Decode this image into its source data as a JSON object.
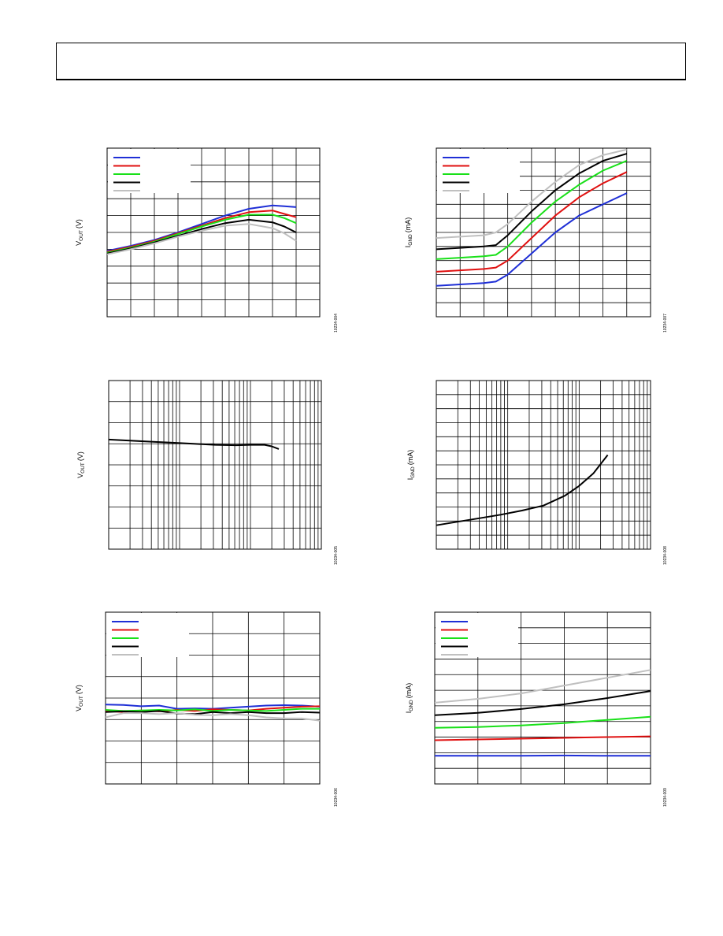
{
  "colors": {
    "blue": "#1f2fd6",
    "red": "#e01010",
    "green": "#19e019",
    "black": "#000000",
    "gray": "#c0c0c0"
  },
  "chart_data": [
    {
      "type": "line",
      "ylabel_main": "V",
      "ylabel_sub": "OUT",
      "ylabel_unit": "(V)",
      "figure_id": "10234-004",
      "legend": true,
      "grid": {
        "v": 9,
        "h": 10
      },
      "xlim": [
        0,
        9
      ],
      "ylim": [
        0,
        10
      ],
      "series": [
        {
          "color": "blue",
          "x": [
            0,
            1,
            2,
            3,
            4,
            5,
            6,
            7,
            7.5,
            8
          ],
          "y": [
            3.9,
            4.2,
            4.55,
            5.0,
            5.5,
            6.0,
            6.4,
            6.6,
            6.55,
            6.5
          ]
        },
        {
          "color": "red",
          "x": [
            0,
            1,
            2,
            3,
            4,
            5,
            6,
            7,
            7.5,
            8
          ],
          "y": [
            3.85,
            4.15,
            4.5,
            4.95,
            5.4,
            5.85,
            6.2,
            6.3,
            6.1,
            5.9
          ]
        },
        {
          "color": "green",
          "x": [
            0,
            1,
            2,
            3,
            4,
            5,
            6,
            7,
            7.5,
            8
          ],
          "y": [
            3.8,
            4.1,
            4.45,
            4.9,
            5.35,
            5.75,
            6.05,
            6.05,
            5.85,
            5.55
          ]
        },
        {
          "color": "black",
          "x": [
            0,
            1,
            2,
            3,
            4,
            5,
            6,
            7,
            7.5,
            8
          ],
          "y": [
            3.75,
            4.05,
            4.4,
            4.8,
            5.2,
            5.55,
            5.75,
            5.6,
            5.35,
            5.0
          ]
        },
        {
          "color": "gray",
          "x": [
            0,
            1,
            2,
            3,
            4,
            5,
            6,
            7,
            7.5,
            8
          ],
          "y": [
            3.7,
            4.0,
            4.35,
            4.75,
            5.1,
            5.4,
            5.5,
            5.25,
            4.95,
            4.5
          ]
        }
      ]
    },
    {
      "type": "line",
      "ylabel_main": "I",
      "ylabel_sub": "GND",
      "ylabel_unit": "(mA)",
      "figure_id": "10234-007",
      "legend": true,
      "grid": {
        "v": 9,
        "h": 12
      },
      "xlim": [
        0,
        9
      ],
      "ylim": [
        0,
        12
      ],
      "series": [
        {
          "color": "blue",
          "x": [
            0,
            1,
            2,
            2.5,
            3,
            4,
            5,
            6,
            7,
            8
          ],
          "y": [
            2.2,
            2.3,
            2.4,
            2.5,
            3.0,
            4.5,
            6.0,
            7.2,
            8.0,
            8.8
          ]
        },
        {
          "color": "red",
          "x": [
            0,
            1,
            2,
            2.5,
            3,
            4,
            5,
            6,
            7,
            8
          ],
          "y": [
            3.2,
            3.3,
            3.4,
            3.5,
            4.0,
            5.6,
            7.2,
            8.5,
            9.5,
            10.3
          ]
        },
        {
          "color": "green",
          "x": [
            0,
            1,
            2,
            2.5,
            3,
            4,
            5,
            6,
            7,
            8
          ],
          "y": [
            4.1,
            4.2,
            4.3,
            4.4,
            5.0,
            6.7,
            8.2,
            9.4,
            10.4,
            11.1
          ]
        },
        {
          "color": "black",
          "x": [
            0,
            1,
            2,
            2.5,
            3,
            4,
            5,
            6,
            7,
            8
          ],
          "y": [
            4.8,
            4.9,
            5.0,
            5.1,
            5.8,
            7.5,
            9.0,
            10.2,
            11.1,
            11.6
          ]
        },
        {
          "color": "gray",
          "x": [
            0,
            1,
            2,
            2.5,
            3,
            4,
            5,
            6,
            7,
            8
          ],
          "y": [
            5.6,
            5.7,
            5.8,
            6.0,
            6.6,
            8.2,
            9.6,
            10.8,
            11.5,
            11.9
          ]
        }
      ]
    },
    {
      "type": "line",
      "xscale": "log",
      "ylabel_main": "V",
      "ylabel_sub": "OUT",
      "ylabel_unit": "(V)",
      "figure_id": "10234-005",
      "legend": false,
      "grid": {
        "decades": 3,
        "h": 8
      },
      "xlim": [
        0,
        3
      ],
      "ylim": [
        0,
        8
      ],
      "series": [
        {
          "color": "black",
          "x": [
            0,
            0.3,
            0.6,
            0.9,
            1.2,
            1.5,
            1.8,
            2.0,
            2.2,
            2.3,
            2.4
          ],
          "y": [
            5.2,
            5.15,
            5.1,
            5.05,
            5.0,
            4.95,
            4.93,
            4.95,
            4.95,
            4.88,
            4.75
          ]
        }
      ]
    },
    {
      "type": "line",
      "xscale": "log",
      "ylabel_main": "I",
      "ylabel_sub": "GND",
      "ylabel_unit": "(mA)",
      "figure_id": "10234-008",
      "legend": false,
      "grid": {
        "decades": 3,
        "h": 12
      },
      "xlim": [
        0,
        3
      ],
      "ylim": [
        0,
        12
      ],
      "series": [
        {
          "color": "black",
          "x": [
            0,
            0.3,
            0.6,
            0.9,
            1.2,
            1.5,
            1.8,
            2.0,
            2.2,
            2.4
          ],
          "y": [
            1.7,
            1.95,
            2.2,
            2.45,
            2.75,
            3.1,
            3.8,
            4.5,
            5.4,
            6.7
          ]
        }
      ]
    },
    {
      "type": "line",
      "ylabel_main": "V",
      "ylabel_sub": "OUT",
      "ylabel_unit": "(V)",
      "figure_id": "10234-006",
      "legend": true,
      "grid": {
        "v": 6,
        "h": 8
      },
      "xlim": [
        0,
        6
      ],
      "ylim": [
        0,
        8
      ],
      "series": [
        {
          "color": "blue",
          "x": [
            0,
            0.5,
            1,
            1.5,
            2,
            2.5,
            3,
            3.5,
            4,
            4.5,
            5,
            5.5,
            6
          ],
          "y": [
            3.7,
            3.68,
            3.62,
            3.65,
            3.5,
            3.52,
            3.5,
            3.55,
            3.6,
            3.65,
            3.67,
            3.65,
            3.6
          ]
        },
        {
          "color": "red",
          "x": [
            0,
            0.5,
            1,
            1.5,
            2,
            2.5,
            3,
            3.5,
            4,
            4.5,
            5,
            5.5,
            6
          ],
          "y": [
            3.4,
            3.35,
            3.42,
            3.38,
            3.45,
            3.4,
            3.48,
            3.45,
            3.42,
            3.5,
            3.55,
            3.6,
            3.62
          ]
        },
        {
          "color": "green",
          "x": [
            0,
            0.5,
            1,
            1.5,
            2,
            2.5,
            3,
            3.5,
            4,
            4.5,
            5,
            5.5,
            6
          ],
          "y": [
            3.45,
            3.4,
            3.42,
            3.45,
            3.42,
            3.48,
            3.4,
            3.45,
            3.42,
            3.4,
            3.45,
            3.5,
            3.5
          ]
        },
        {
          "color": "black",
          "x": [
            0,
            0.5,
            1,
            1.5,
            2,
            2.5,
            3,
            3.5,
            4,
            4.5,
            5,
            5.5,
            6
          ],
          "y": [
            3.35,
            3.38,
            3.35,
            3.4,
            3.28,
            3.25,
            3.35,
            3.3,
            3.35,
            3.3,
            3.3,
            3.35,
            3.32
          ]
        },
        {
          "color": "gray",
          "x": [
            0,
            0.5,
            1,
            1.5,
            2,
            2.5,
            3,
            3.5,
            4,
            4.5,
            5,
            5.5,
            6
          ],
          "y": [
            3.1,
            3.3,
            3.3,
            3.25,
            3.3,
            3.22,
            3.2,
            3.25,
            3.2,
            3.1,
            3.05,
            3.05,
            2.95
          ]
        }
      ]
    },
    {
      "type": "line",
      "ylabel_main": "I",
      "ylabel_sub": "GND",
      "ylabel_unit": "(mA)",
      "figure_id": "10234-009",
      "legend": true,
      "grid": {
        "v": 5,
        "h": 11
      },
      "xlim": [
        0,
        5
      ],
      "ylim": [
        0,
        11
      ],
      "series": [
        {
          "color": "blue",
          "x": [
            0,
            1,
            2,
            3,
            4,
            5
          ],
          "y": [
            1.8,
            1.8,
            1.8,
            1.82,
            1.8,
            1.8
          ]
        },
        {
          "color": "red",
          "x": [
            0,
            1,
            2,
            3,
            4,
            5
          ],
          "y": [
            2.8,
            2.85,
            2.9,
            2.95,
            3.0,
            3.05
          ]
        },
        {
          "color": "green",
          "x": [
            0,
            1,
            2,
            3,
            4,
            5
          ],
          "y": [
            3.6,
            3.65,
            3.75,
            3.9,
            4.1,
            4.3
          ]
        },
        {
          "color": "black",
          "x": [
            0,
            1,
            2,
            3,
            4,
            5
          ],
          "y": [
            4.4,
            4.55,
            4.8,
            5.1,
            5.5,
            5.95
          ]
        },
        {
          "color": "gray",
          "x": [
            0,
            1,
            2,
            3,
            4,
            5
          ],
          "y": [
            5.2,
            5.45,
            5.8,
            6.3,
            6.8,
            7.3
          ]
        }
      ]
    }
  ]
}
